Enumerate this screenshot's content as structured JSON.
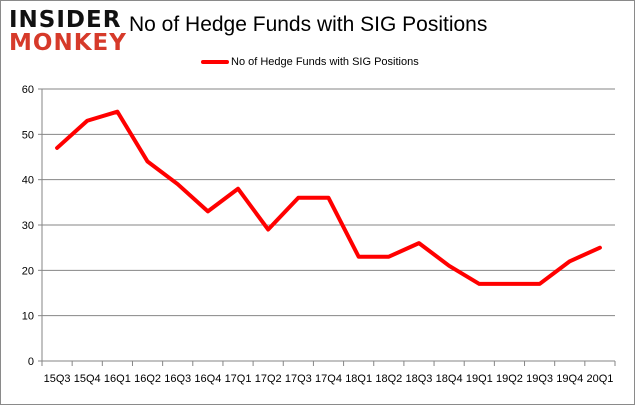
{
  "logo": {
    "line1": "INSIDER",
    "line2": "MONKEY"
  },
  "chart_data": {
    "type": "line",
    "title": "No of Hedge Funds with SIG Positions",
    "categories": [
      "15Q3",
      "15Q4",
      "16Q1",
      "16Q2",
      "16Q3",
      "16Q4",
      "17Q1",
      "17Q2",
      "17Q3",
      "17Q4",
      "18Q1",
      "18Q2",
      "18Q3",
      "18Q4",
      "19Q1",
      "19Q2",
      "19Q3",
      "19Q4",
      "20Q1"
    ],
    "series": [
      {
        "name": "No of Hedge Funds with SIG Positions",
        "color": "#ff0000",
        "values": [
          47,
          53,
          55,
          44,
          39,
          33,
          38,
          29,
          36,
          36,
          23,
          23,
          26,
          21,
          17,
          17,
          17,
          22,
          25
        ]
      }
    ],
    "ylim": [
      0,
      60
    ],
    "yticks": [
      0,
      10,
      20,
      30,
      40,
      50,
      60
    ],
    "grid": true,
    "legend": "top-center",
    "xlabel": "",
    "ylabel": ""
  }
}
